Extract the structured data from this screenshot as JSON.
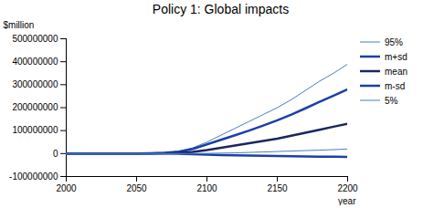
{
  "chart_data": {
    "type": "line",
    "title": "Policy 1: Global impacts",
    "ylabel": "$million",
    "xlabel": "year",
    "x": [
      2000,
      2025,
      2050,
      2060,
      2070,
      2080,
      2090,
      2100,
      2110,
      2120,
      2130,
      2140,
      2150,
      2160,
      2170,
      2180,
      2190,
      2200
    ],
    "series": [
      {
        "name": "95%",
        "color": "#4a7ebb",
        "line_style": "thin",
        "values": [
          0,
          0,
          0,
          1000000,
          4000000,
          10000000,
          25000000,
          50000000,
          80000000,
          110000000,
          140000000,
          170000000,
          200000000,
          235000000,
          275000000,
          315000000,
          350000000,
          390000000
        ]
      },
      {
        "name": "m+sd",
        "color": "#1c3fa8",
        "line_style": "thick",
        "values": [
          0,
          0,
          0,
          1000000,
          3000000,
          8000000,
          20000000,
          40000000,
          60000000,
          80000000,
          100000000,
          122000000,
          145000000,
          170000000,
          197000000,
          225000000,
          252000000,
          280000000
        ]
      },
      {
        "name": "mean",
        "color": "#1b2660",
        "line_style": "thick",
        "values": [
          0,
          0,
          0,
          0,
          1000000,
          3000000,
          7000000,
          15000000,
          25000000,
          35000000,
          45000000,
          55000000,
          65000000,
          78000000,
          91000000,
          104000000,
          117000000,
          130000000
        ]
      },
      {
        "name": "m-sd",
        "color": "#1c3fa8",
        "line_style": "thick",
        "values": [
          0,
          0,
          0,
          0,
          0,
          -1000000,
          -3000000,
          -5000000,
          -7000000,
          -8000000,
          -9000000,
          -10000000,
          -11000000,
          -12000000,
          -13000000,
          -14000000,
          -14000000,
          -15000000
        ]
      },
      {
        "name": "5%",
        "color": "#4a7ebb",
        "line_style": "thin",
        "values": [
          0,
          0,
          0,
          0,
          0,
          0,
          0,
          1000000,
          2000000,
          3000000,
          5000000,
          7000000,
          9000000,
          11000000,
          13000000,
          15000000,
          17000000,
          20000000
        ]
      }
    ],
    "xlim": [
      2000,
      2200
    ],
    "xticks": [
      2000,
      2050,
      2100,
      2150,
      2200
    ],
    "ylim": [
      -100000000,
      500000000
    ],
    "yticks": [
      -100000000,
      0,
      100000000,
      200000000,
      300000000,
      400000000,
      500000000
    ],
    "grid": false,
    "legend": "right"
  }
}
